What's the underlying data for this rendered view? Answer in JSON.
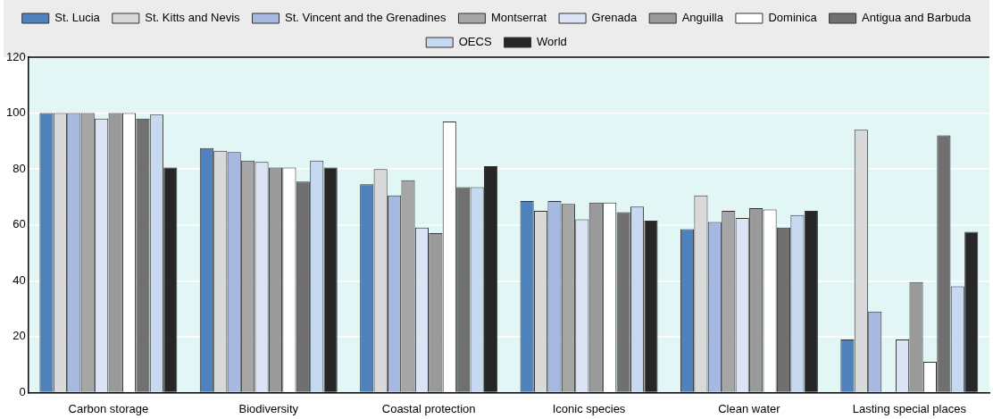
{
  "chart_data": {
    "type": "bar",
    "categories": [
      "Carbon storage",
      "Biodiversity",
      "Coastal protection",
      "Iconic species",
      "Clean water",
      "Lasting special places"
    ],
    "series": [
      {
        "name": "St. Lucia",
        "color": "#4f81bd",
        "values": [
          100,
          87.5,
          74.5,
          68.5,
          58.5,
          19
        ]
      },
      {
        "name": "St. Kitts and Nevis",
        "color": "#d9d9d9",
        "values": [
          100,
          86.5,
          80,
          65,
          70.5,
          94
        ]
      },
      {
        "name": "St. Vincent and the Grenadines",
        "color": "#a7b9e1",
        "values": [
          100,
          86,
          70.5,
          68.5,
          61,
          29
        ]
      },
      {
        "name": "Montserrat",
        "color": "#a6a6a6",
        "values": [
          100,
          83,
          76,
          67.5,
          65,
          null
        ]
      },
      {
        "name": "Grenada",
        "color": "#dbe3f4",
        "values": [
          98,
          82.5,
          59,
          62,
          62.5,
          19
        ]
      },
      {
        "name": "Anguilla",
        "color": "#9a9a9a",
        "values": [
          100,
          80.5,
          57,
          68,
          66,
          39.5
        ]
      },
      {
        "name": "Dominica",
        "color": "#ffffff",
        "values": [
          100,
          80.5,
          97,
          68,
          65.5,
          11
        ]
      },
      {
        "name": "Antigua and Barbuda",
        "color": "#707070",
        "values": [
          98,
          75.5,
          73.5,
          64.5,
          59,
          92
        ]
      },
      {
        "name": "OECS",
        "color": "#c6d9f1",
        "values": [
          99.5,
          83,
          73.5,
          66.5,
          63.5,
          38
        ]
      },
      {
        "name": "World",
        "color": "#262626",
        "values": [
          80.5,
          80.5,
          81,
          61.5,
          65,
          57.5
        ]
      }
    ],
    "ylim": [
      0,
      120
    ],
    "yticks": [
      0,
      20,
      40,
      60,
      80,
      100,
      120
    ],
    "grid": "y",
    "legend": "top"
  }
}
